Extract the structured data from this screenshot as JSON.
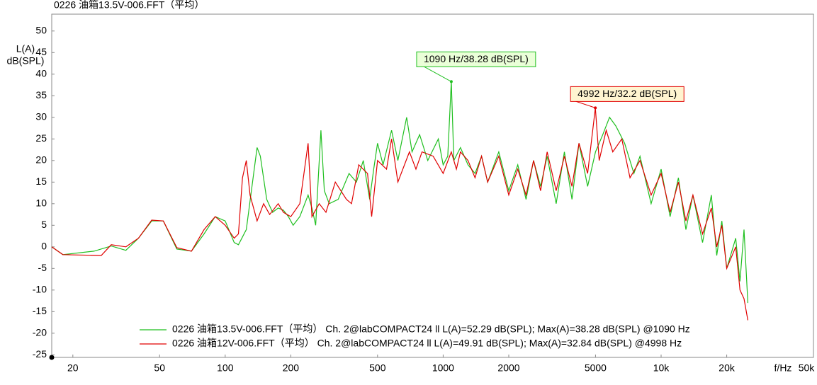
{
  "chart_data": {
    "type": "line",
    "title": "0226 油箱13.5V-006.FFT（平均）",
    "y_label": [
      "L(A)",
      "dB(SPL)"
    ],
    "x_label": "f/Hz",
    "log_x": true,
    "grid": false,
    "legend": "lower right",
    "xlim": [
      16,
      50000
    ],
    "ylim": [
      -25.6,
      53.9
    ],
    "xticks": [
      20,
      50,
      100,
      200,
      500,
      1000,
      2000,
      5000,
      {
        "value": 10000,
        "label": "10k"
      },
      {
        "value": 20000,
        "label": "20k"
      },
      {
        "value": 50000,
        "label": "50k"
      }
    ],
    "yticks": [
      50,
      45,
      40,
      35,
      30,
      25,
      20,
      15,
      10,
      5,
      0,
      -5,
      -10,
      -15,
      -20,
      -25
    ],
    "series": [
      {
        "name": "0226 油箱13.5V-006.FFT（平均） Ch. 2@labCOMPACT24 ll L(A)=52.29 dB(SPL); Max(A)=38.28 dB(SPL) @1090 Hz",
        "color": "#1fbf1f",
        "x": [
          16,
          18,
          25,
          30,
          35,
          40,
          46,
          52,
          60,
          70,
          80,
          90,
          100,
          110,
          115,
          125,
          140,
          145,
          155,
          165,
          175,
          185,
          195,
          205,
          220,
          240,
          250,
          260,
          275,
          285,
          300,
          330,
          370,
          400,
          430,
          460,
          480,
          500,
          530,
          580,
          620,
          680,
          720,
          780,
          850,
          950,
          1000,
          1050,
          1090,
          1120,
          1200,
          1300,
          1400,
          1500,
          1600,
          1800,
          2000,
          2200,
          2400,
          2600,
          2800,
          3000,
          3300,
          3600,
          3900,
          4200,
          4600,
          5000,
          5400,
          5800,
          6200,
          6800,
          7500,
          8000,
          9000,
          10000,
          11000,
          12000,
          13000,
          14000,
          15500,
          17000,
          18000,
          19000,
          20000,
          22000,
          23000,
          24000,
          25000
        ],
        "values": [
          0,
          -1.8,
          -1,
          0.2,
          -0.8,
          2,
          6,
          6,
          -0.5,
          -1,
          3,
          7,
          6,
          1,
          0.5,
          4,
          23,
          21,
          11,
          8,
          9,
          8.5,
          7,
          5,
          7,
          12,
          9,
          5,
          27,
          13,
          10,
          11,
          17,
          15,
          20,
          11,
          18,
          24,
          19,
          27,
          20,
          30,
          22,
          26,
          20,
          25,
          19,
          21,
          38.28,
          20,
          23,
          19,
          17,
          21,
          15,
          22,
          13,
          19,
          11,
          20,
          14,
          21,
          10,
          22,
          11,
          24,
          14,
          22,
          26,
          30,
          28,
          24,
          17,
          21,
          10,
          18,
          7,
          16,
          4,
          12,
          1,
          12,
          -2,
          6,
          -5,
          2,
          -8,
          4,
          -13
        ]
      },
      {
        "name": "0226 油箱12V-006.FFT（平均） Ch. 2@labCOMPACT24 ll L(A)=49.91 dB(SPL); Max(A)=32.84 dB(SPL) @4998 Hz",
        "color": "#e00000",
        "x": [
          16,
          18,
          27,
          30,
          35,
          40,
          46,
          52,
          60,
          70,
          80,
          90,
          100,
          110,
          115,
          120,
          125,
          130,
          140,
          150,
          160,
          175,
          185,
          200,
          220,
          240,
          250,
          270,
          290,
          320,
          360,
          380,
          410,
          450,
          470,
          500,
          550,
          580,
          620,
          700,
          750,
          800,
          900,
          1000,
          1090,
          1150,
          1200,
          1300,
          1400,
          1500,
          1600,
          1800,
          2000,
          2200,
          2400,
          2600,
          2800,
          3000,
          3300,
          3600,
          3900,
          4200,
          4600,
          4992,
          5200,
          5600,
          6000,
          6600,
          7200,
          8000,
          9000,
          10000,
          11000,
          12000,
          13000,
          14000,
          15500,
          17000,
          18000,
          19000,
          20000,
          22000,
          23000,
          24000,
          25000
        ],
        "values": [
          0,
          -1.8,
          -2,
          0.5,
          0,
          2,
          6.2,
          6,
          -0.2,
          -1,
          4,
          7,
          5,
          2,
          3,
          16,
          20,
          12,
          6,
          10,
          7.5,
          10,
          8,
          7,
          10,
          24,
          7,
          10,
          8,
          15,
          11,
          10,
          19,
          17,
          7,
          20,
          18,
          25,
          15,
          22,
          18,
          22,
          21,
          17,
          22,
          18,
          22,
          20,
          16,
          21,
          15,
          21,
          12,
          18,
          12,
          20,
          13,
          22,
          13,
          21,
          14,
          24,
          17,
          32.2,
          20,
          27,
          22,
          25,
          16,
          20,
          12,
          17,
          8,
          15,
          6,
          12,
          3,
          9,
          0,
          5,
          -5,
          0,
          -10,
          -12,
          -17
        ]
      }
    ],
    "annotations": [
      {
        "text": "1090 Hz/38.28 dB(SPL)",
        "x": 1090,
        "y": 38.28,
        "color": "#1fbf1f",
        "fill": "#eaffd8"
      },
      {
        "text": "4992 Hz/32.2 dB(SPL)",
        "x": 4992,
        "y": 32.2,
        "color": "#e00000",
        "fill": "#fff4d0"
      }
    ]
  }
}
